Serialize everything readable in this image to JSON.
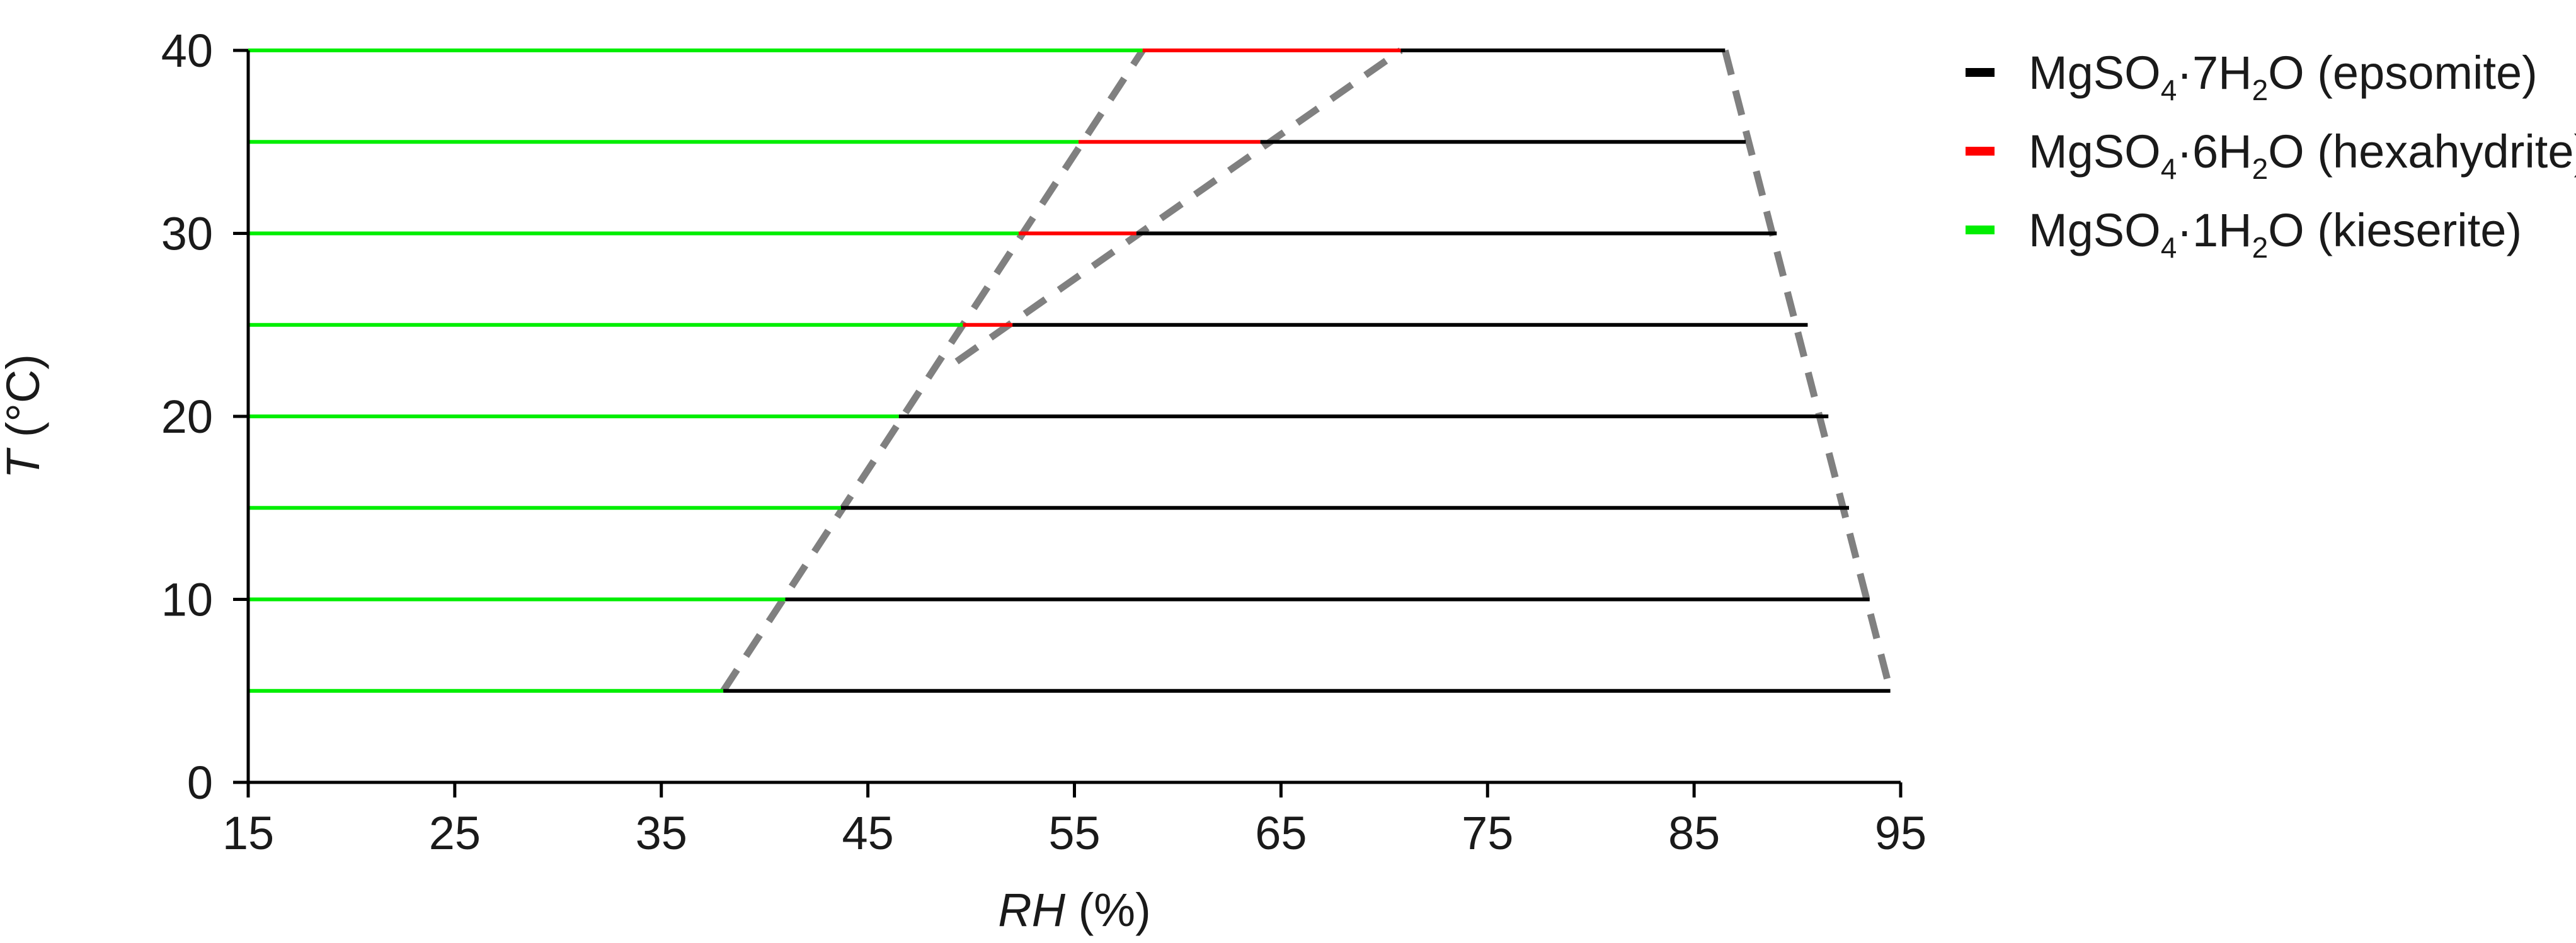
{
  "chart_data": {
    "type": "line",
    "xlabel": {
      "italic": "RH",
      "rest": " (%)"
    },
    "ylabel": {
      "italic": "T",
      "rest": " (°C)"
    },
    "xlim": [
      15,
      95
    ],
    "ylim": [
      0,
      40
    ],
    "xticks": [
      15,
      25,
      35,
      45,
      55,
      65,
      75,
      85,
      95
    ],
    "yticks": [
      0,
      10,
      20,
      30,
      40
    ],
    "colors": {
      "epsomite": "#000000",
      "hexahydrite": "#ff0000",
      "kieserite": "#00ee00",
      "boundary": "#808080",
      "axis": "#000000"
    },
    "legend": {
      "position": "top-right",
      "entries": [
        {
          "key": "epsomite",
          "parts": [
            [
              "t",
              "MgSO"
            ],
            [
              "s",
              "4"
            ],
            [
              "t",
              "·7H"
            ],
            [
              "s",
              "2"
            ],
            [
              "t",
              "O (epsomite)"
            ]
          ]
        },
        {
          "key": "hexahydrite",
          "parts": [
            [
              "t",
              "MgSO"
            ],
            [
              "s",
              "4"
            ],
            [
              "t",
              "·6H"
            ],
            [
              "s",
              "2"
            ],
            [
              "t",
              "O (hexahydrite)"
            ]
          ]
        },
        {
          "key": "kieserite",
          "parts": [
            [
              "t",
              "MgSO"
            ],
            [
              "s",
              "4"
            ],
            [
              "t",
              "·1H"
            ],
            [
              "s",
              "2"
            ],
            [
              "t",
              "O (kieserite)"
            ]
          ]
        }
      ]
    },
    "segments": [
      {
        "T": 5,
        "kieserite": [
          15,
          38
        ],
        "hexahydrite": null,
        "epsomite": [
          38,
          94.5
        ]
      },
      {
        "T": 10,
        "kieserite": [
          15,
          41
        ],
        "hexahydrite": null,
        "epsomite": [
          41,
          93.5
        ]
      },
      {
        "T": 15,
        "kieserite": [
          15,
          43.7
        ],
        "hexahydrite": null,
        "epsomite": [
          43.7,
          92.5
        ]
      },
      {
        "T": 20,
        "kieserite": [
          15,
          46.5
        ],
        "hexahydrite": null,
        "epsomite": [
          46.5,
          91.5
        ]
      },
      {
        "T": 25,
        "kieserite": [
          15,
          49.6
        ],
        "hexahydrite": [
          49.6,
          52
        ],
        "epsomite": [
          52,
          90.5
        ]
      },
      {
        "T": 30,
        "kieserite": [
          15,
          52.3
        ],
        "hexahydrite": [
          52.3,
          58
        ],
        "epsomite": [
          58,
          89
        ]
      },
      {
        "T": 35,
        "kieserite": [
          15,
          55.2
        ],
        "hexahydrite": [
          55.2,
          64
        ],
        "epsomite": [
          64,
          87.5
        ]
      },
      {
        "T": 40,
        "kieserite": [
          15,
          58.3
        ],
        "hexahydrite": [
          58.3,
          70.8
        ],
        "epsomite": [
          70.8,
          86.5
        ]
      }
    ],
    "boundaries": [
      {
        "name": "kieserite-boundary",
        "points": [
          [
            38,
            5
          ],
          [
            58.3,
            40
          ]
        ]
      },
      {
        "name": "hexahydrite-boundary",
        "points": [
          [
            49.3,
            23
          ],
          [
            70.8,
            40
          ]
        ]
      },
      {
        "name": "deliquescence-boundary",
        "points": [
          [
            86.5,
            40
          ],
          [
            94.5,
            5
          ]
        ]
      }
    ]
  }
}
